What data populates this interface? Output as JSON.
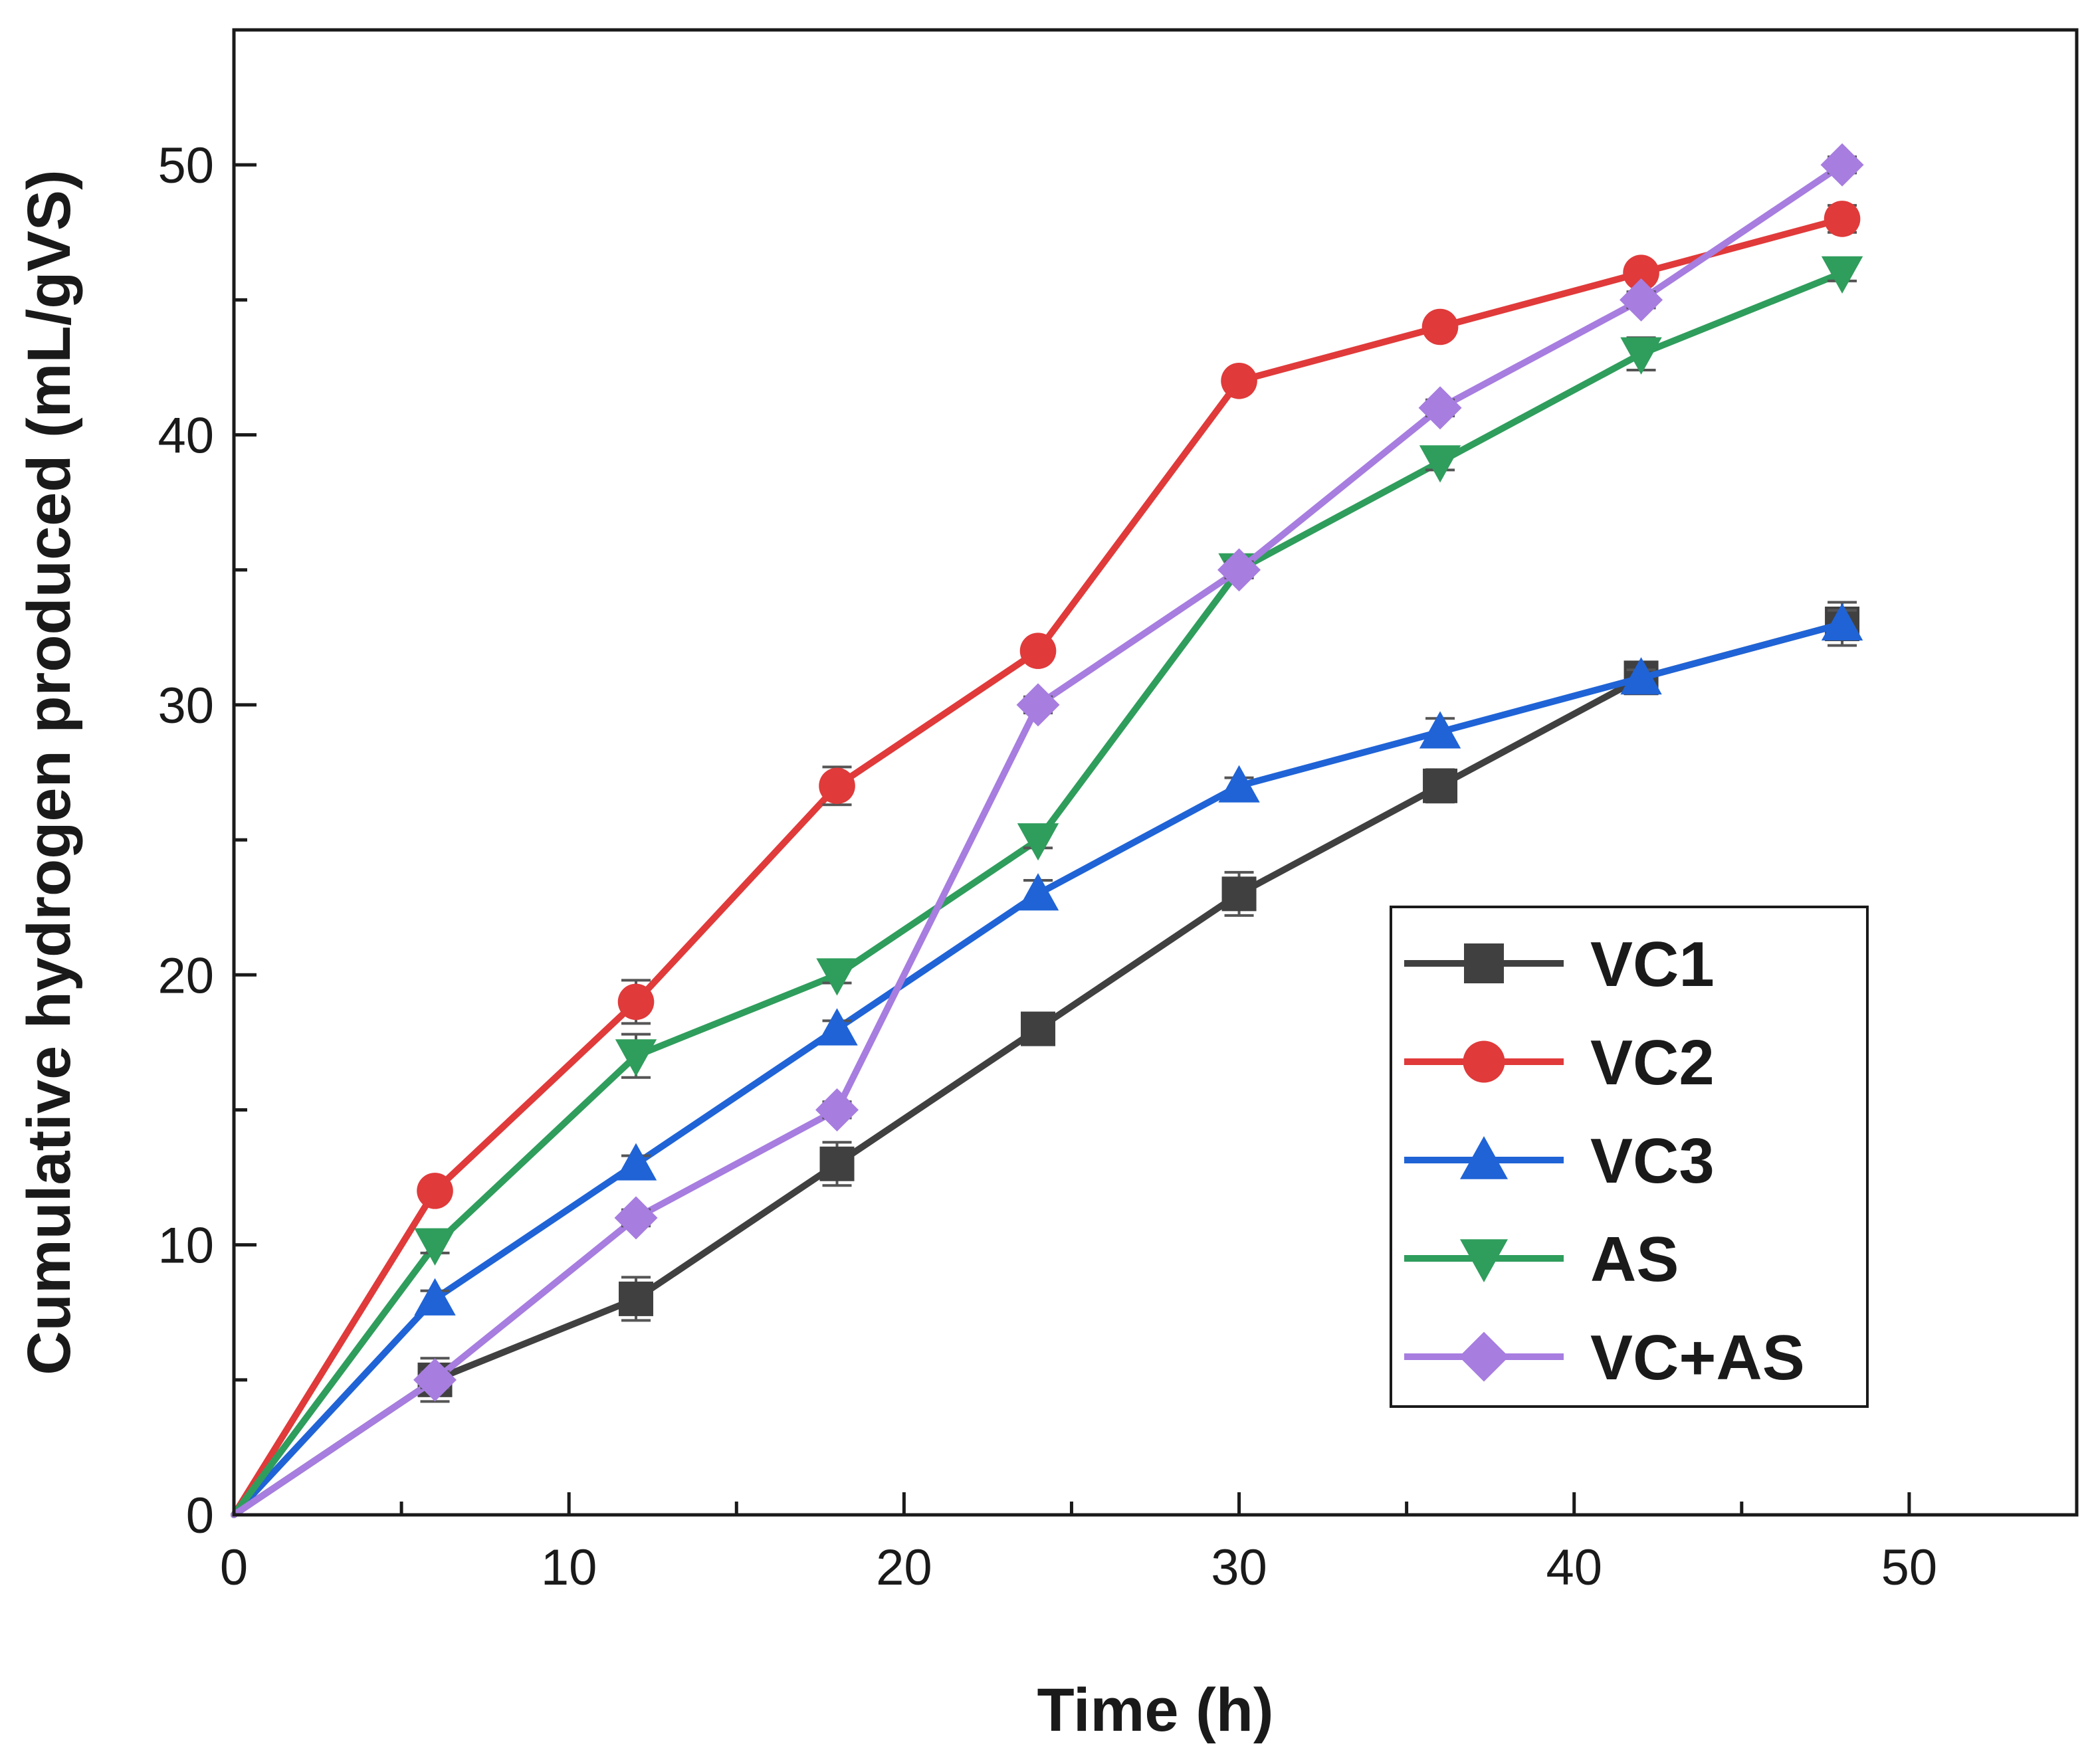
{
  "chart_data": {
    "type": "line",
    "title": "",
    "xlabel": "Time (h)",
    "ylabel": "Cumulative hydrogen produced (mL/gVS)",
    "xlim": [
      0,
      55
    ],
    "ylim": [
      0,
      55
    ],
    "xticks": [
      0,
      10,
      20,
      30,
      40,
      50
    ],
    "yticks": [
      0,
      10,
      20,
      30,
      40,
      50
    ],
    "grid": false,
    "legend_position": "lower-right",
    "x": [
      0,
      6,
      12,
      18,
      24,
      30,
      36,
      42,
      48
    ],
    "series": [
      {
        "name": "VC1",
        "color": "#404040",
        "marker": "square",
        "values": [
          0,
          5,
          8,
          13,
          18,
          23,
          27,
          31,
          33
        ],
        "errors": [
          0,
          0.8,
          0.8,
          0.8,
          0.4,
          0.8,
          0.6,
          0.5,
          0.8
        ]
      },
      {
        "name": "VC2",
        "color": "#e03a3a",
        "marker": "circle",
        "values": [
          0,
          12,
          19,
          27,
          32,
          42,
          44,
          46,
          48
        ],
        "errors": [
          0,
          0.3,
          0.8,
          0.7,
          0.3,
          0.3,
          0.3,
          0.3,
          0.5
        ]
      },
      {
        "name": "VC3",
        "color": "#1f63d6",
        "marker": "triangle-up",
        "values": [
          0,
          8,
          13,
          18,
          23,
          27,
          29,
          31,
          33
        ],
        "errors": [
          0,
          0.3,
          0.3,
          0.3,
          0.5,
          0.3,
          0.5,
          0.3,
          0.5
        ]
      },
      {
        "name": "AS",
        "color": "#2f9d5c",
        "marker": "triangle-down",
        "values": [
          0,
          10,
          17,
          20,
          25,
          35,
          39,
          43,
          46
        ],
        "errors": [
          0,
          0.3,
          0.8,
          0.3,
          0.3,
          0.3,
          0.3,
          0.6,
          0.3
        ]
      },
      {
        "name": "VC+AS",
        "color": "#a77de0",
        "marker": "diamond",
        "values": [
          0,
          5,
          11,
          15,
          30,
          35,
          41,
          45,
          50
        ],
        "errors": [
          0,
          0.3,
          0.3,
          0.3,
          0.3,
          0.3,
          0.3,
          0.3,
          0.3
        ]
      }
    ]
  }
}
